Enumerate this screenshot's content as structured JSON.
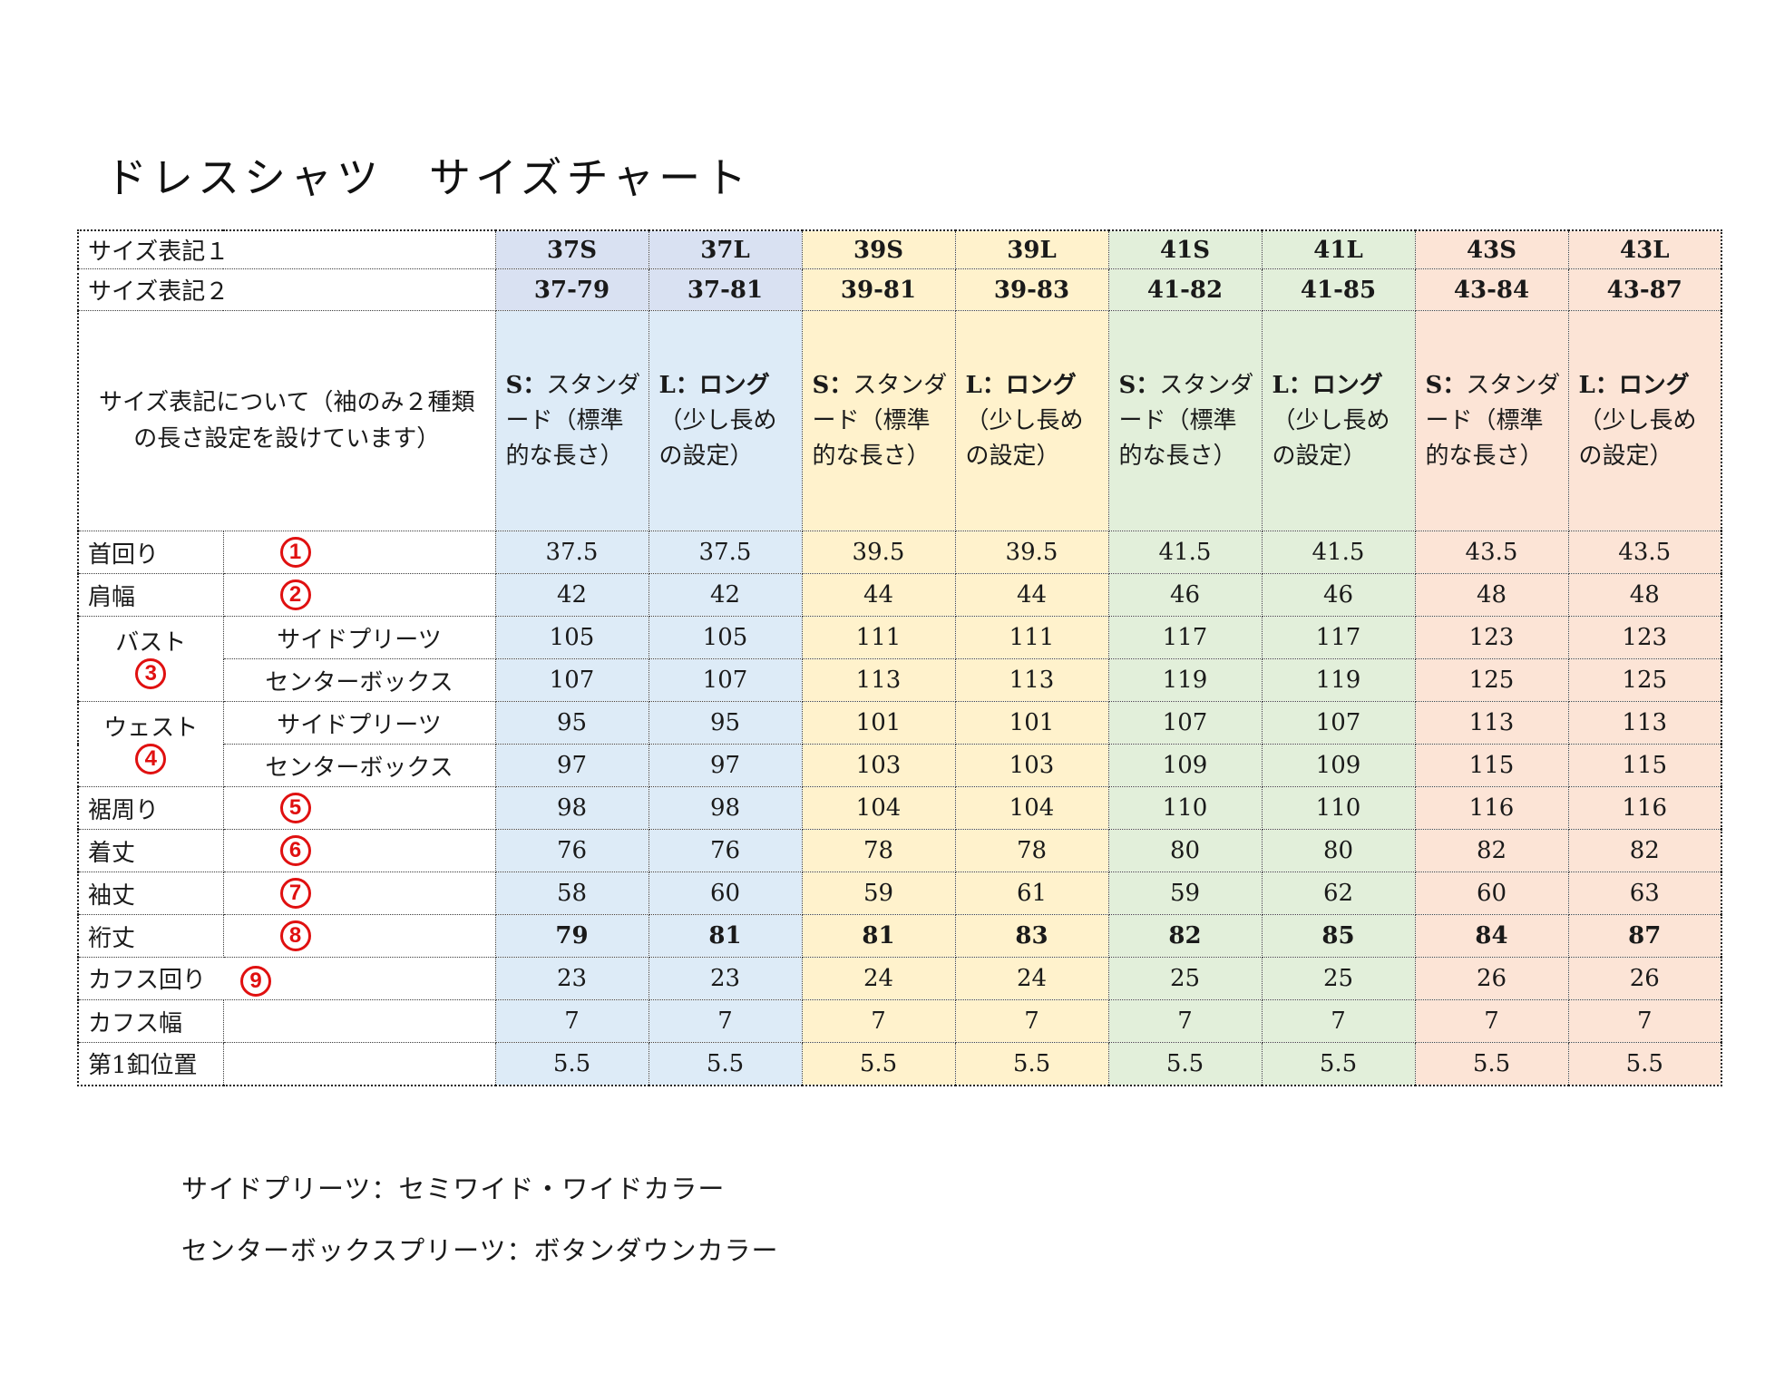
{
  "page": {
    "title": "ドレスシャツ　サイズチャート",
    "notes": [
      "サイドプリーツ：セミワイド・ワイドカラー",
      "センターボックスプリーツ：ボタンダウンカラー"
    ]
  },
  "colors": {
    "header_blue": "#D9E1F2",
    "body_blue": "#DDEBF7",
    "yellow": "#FFF2CC",
    "green": "#E2EFDA",
    "peach": "#FCE4D6",
    "circle_red": "#E01010",
    "border": "#3A3A3A"
  },
  "table": {
    "column_groups": [
      "blue",
      "blue",
      "yellow",
      "yellow",
      "green",
      "green",
      "peach",
      "peach"
    ],
    "header_rows": [
      {
        "label": "サイズ表記１",
        "values": [
          "37S",
          "37L",
          "39S",
          "39L",
          "41S",
          "41L",
          "43S",
          "43L"
        ]
      },
      {
        "label": "サイズ表記２",
        "values": [
          "37-79",
          "37-81",
          "39-81",
          "39-83",
          "41-82",
          "41-85",
          "43-84",
          "43-87"
        ]
      }
    ],
    "description_row": {
      "label": "サイズ表記について（袖のみ２種類の長さ設定を設けています）",
      "cells": [
        {
          "bold": "S：",
          "rest": "スタンダード（標準的な長さ）"
        },
        {
          "bold": "L：ロング",
          "rest": "（少し長めの設定）"
        },
        {
          "bold": "S：",
          "rest": "スタンダード（標準的な長さ）"
        },
        {
          "bold": "L：ロング",
          "rest": "（少し長めの設定）"
        },
        {
          "bold": "S：",
          "rest": "スタンダード（標準的な長さ）"
        },
        {
          "bold": "L：ロング",
          "rest": "（少し長めの設定）"
        },
        {
          "bold": "S：",
          "rest": "スタンダード（標準的な長さ）"
        },
        {
          "bold": "L：ロング",
          "rest": "（少し長めの設定）"
        }
      ]
    },
    "rows": [
      {
        "layout": "split",
        "label": "首回り",
        "circle": "1",
        "values": [
          "37.5",
          "37.5",
          "39.5",
          "39.5",
          "41.5",
          "41.5",
          "43.5",
          "43.5"
        ]
      },
      {
        "layout": "split",
        "label": "肩幅",
        "circle": "2",
        "values": [
          "42",
          "42",
          "44",
          "44",
          "46",
          "46",
          "48",
          "48"
        ]
      },
      {
        "layout": "group",
        "label": "バスト",
        "circle": "3",
        "sublabel": "サイドプリーツ",
        "values": [
          "105",
          "105",
          "111",
          "111",
          "117",
          "117",
          "123",
          "123"
        ]
      },
      {
        "layout": "group-cont",
        "sublabel": "センターボックス",
        "values": [
          "107",
          "107",
          "113",
          "113",
          "119",
          "119",
          "125",
          "125"
        ]
      },
      {
        "layout": "group",
        "label": "ウェスト",
        "circle": "4",
        "sublabel": "サイドプリーツ",
        "values": [
          "95",
          "95",
          "101",
          "101",
          "107",
          "107",
          "113",
          "113"
        ]
      },
      {
        "layout": "group-cont",
        "sublabel": "センターボックス",
        "values": [
          "97",
          "97",
          "103",
          "103",
          "109",
          "109",
          "115",
          "115"
        ]
      },
      {
        "layout": "split",
        "label": "裾周り",
        "circle": "5",
        "values": [
          "98",
          "98",
          "104",
          "104",
          "110",
          "110",
          "116",
          "116"
        ]
      },
      {
        "layout": "split",
        "label": "着丈",
        "circle": "6",
        "values": [
          "76",
          "76",
          "78",
          "78",
          "80",
          "80",
          "82",
          "82"
        ]
      },
      {
        "layout": "split",
        "label": "袖丈",
        "circle": "7",
        "values": [
          "58",
          "60",
          "59",
          "61",
          "59",
          "62",
          "60",
          "63"
        ]
      },
      {
        "layout": "split",
        "label": "裄丈",
        "circle": "8",
        "bold": true,
        "values": [
          "79",
          "81",
          "81",
          "83",
          "82",
          "85",
          "84",
          "87"
        ]
      },
      {
        "layout": "merged",
        "label": "カフス回り",
        "circle": "9",
        "values": [
          "23",
          "23",
          "24",
          "24",
          "25",
          "25",
          "26",
          "26"
        ]
      },
      {
        "layout": "split",
        "label": "カフス幅",
        "circle": "",
        "values": [
          "7",
          "7",
          "7",
          "7",
          "7",
          "7",
          "7",
          "7"
        ]
      },
      {
        "layout": "split",
        "label": "第1釦位置",
        "circle": "",
        "values": [
          "5.5",
          "5.5",
          "5.5",
          "5.5",
          "5.5",
          "5.5",
          "5.5",
          "5.5"
        ]
      }
    ]
  }
}
